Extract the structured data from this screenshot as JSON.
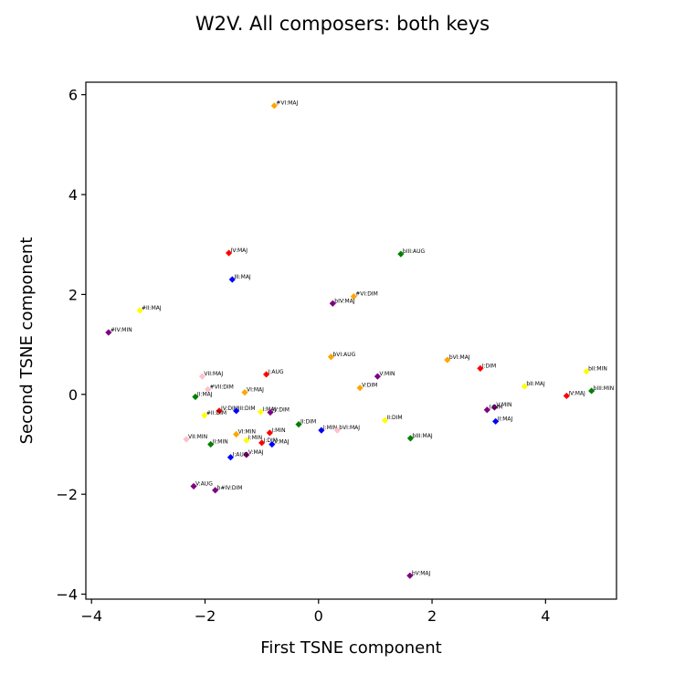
{
  "chart_data": {
    "type": "scatter",
    "title": "W2V. All composers: both keys",
    "xlabel": "First TSNE component",
    "ylabel": "Second TSNE component",
    "xlim": [
      -4.1,
      5.25
    ],
    "ylim": [
      -4.1,
      6.25
    ],
    "xticks": [
      -4,
      -2,
      0,
      2,
      4
    ],
    "yticks": [
      -4,
      -2,
      0,
      2,
      4,
      6
    ],
    "grid": false,
    "points": [
      {
        "x": -0.78,
        "y": 5.78,
        "label": "#VI:MAJ",
        "color": "#ffa500"
      },
      {
        "x": -1.58,
        "y": 2.83,
        "label": "IV:MAJ",
        "color": "#ff0000"
      },
      {
        "x": 1.45,
        "y": 2.81,
        "label": "bIII:AUG",
        "color": "#008000"
      },
      {
        "x": -1.52,
        "y": 2.3,
        "label": "III:MAJ",
        "color": "#0000ff"
      },
      {
        "x": 0.62,
        "y": 1.96,
        "label": "#VI:DIM",
        "color": "#ffa500"
      },
      {
        "x": 0.25,
        "y": 1.82,
        "label": "bIV:MAJ",
        "color": "#800080"
      },
      {
        "x": -3.15,
        "y": 1.68,
        "label": "#II:MAJ",
        "color": "#ffff00"
      },
      {
        "x": -3.7,
        "y": 1.24,
        "label": "#IV:MIN",
        "color": "#800080"
      },
      {
        "x": 0.22,
        "y": 0.75,
        "label": "bVI:AUG",
        "color": "#ffa500"
      },
      {
        "x": 2.27,
        "y": 0.69,
        "label": "bVI:MAJ",
        "color": "#ffa500"
      },
      {
        "x": 2.85,
        "y": 0.52,
        "label": "I:DIM",
        "color": "#ff0000"
      },
      {
        "x": 4.72,
        "y": 0.46,
        "label": "bII:MIN",
        "color": "#ffff00"
      },
      {
        "x": -0.92,
        "y": 0.4,
        "label": "I:AUG",
        "color": "#ff0000"
      },
      {
        "x": 1.04,
        "y": 0.36,
        "label": "V:MIN",
        "color": "#800080"
      },
      {
        "x": -2.05,
        "y": 0.36,
        "label": "VII:MAJ",
        "color": "#ffc0cb"
      },
      {
        "x": 3.63,
        "y": 0.16,
        "label": "bII:MAJ",
        "color": "#ffff00"
      },
      {
        "x": 0.73,
        "y": 0.13,
        "label": "V:DIM",
        "color": "#ffa500"
      },
      {
        "x": -1.95,
        "y": 0.1,
        "label": "#VII:DIM",
        "color": "#ffc0cb"
      },
      {
        "x": 4.81,
        "y": 0.07,
        "label": "bIII:MIN",
        "color": "#008000"
      },
      {
        "x": -1.3,
        "y": 0.04,
        "label": "VI:MAJ",
        "color": "#ffa500"
      },
      {
        "x": 4.37,
        "y": -0.03,
        "label": "IV:MAJ",
        "color": "#ff0000"
      },
      {
        "x": -2.17,
        "y": -0.05,
        "label": "II:MAJ",
        "color": "#008000"
      },
      {
        "x": 3.1,
        "y": -0.26,
        "label": "V:MIN",
        "color": "#800080"
      },
      {
        "x": 2.97,
        "y": -0.31,
        "label": "I:DIM",
        "color": "#800080"
      },
      {
        "x": -1.75,
        "y": -0.33,
        "label": "IV:DIM",
        "color": "#ff0000"
      },
      {
        "x": -1.45,
        "y": -0.33,
        "label": "III:DIM",
        "color": "#0000ff"
      },
      {
        "x": -1.02,
        "y": -0.35,
        "label": "I:MAJ",
        "color": "#ffff00"
      },
      {
        "x": -0.85,
        "y": -0.36,
        "label": "IV:DIM",
        "color": "#800080"
      },
      {
        "x": -2.01,
        "y": -0.42,
        "label": "#II:DIM",
        "color": "#ffff00"
      },
      {
        "x": 1.17,
        "y": -0.52,
        "label": "II:DIM",
        "color": "#ffff00"
      },
      {
        "x": 3.12,
        "y": -0.54,
        "label": "II:MAJ",
        "color": "#0000ff"
      },
      {
        "x": -0.35,
        "y": -0.6,
        "label": "II:DIM",
        "color": "#008000"
      },
      {
        "x": 0.05,
        "y": -0.72,
        "label": "I:MIN",
        "color": "#0000ff"
      },
      {
        "x": 0.33,
        "y": -0.72,
        "label": "bVI:MAJ",
        "color": "#ffc0cb"
      },
      {
        "x": -0.86,
        "y": -0.77,
        "label": "I:MIN",
        "color": "#ff0000"
      },
      {
        "x": -1.45,
        "y": -0.8,
        "label": "VI:MIN",
        "color": "#ffa500"
      },
      {
        "x": 1.62,
        "y": -0.88,
        "label": "bIII:MAJ",
        "color": "#008000"
      },
      {
        "x": -2.33,
        "y": -0.9,
        "label": "VII:MIN",
        "color": "#ffc0cb"
      },
      {
        "x": -1.27,
        "y": -0.92,
        "label": "I:MIN",
        "color": "#ffff00"
      },
      {
        "x": -1.0,
        "y": -0.97,
        "label": "I:DIM",
        "color": "#ff0000"
      },
      {
        "x": -0.82,
        "y": -1.0,
        "label": "V:MAJ",
        "color": "#0000ff"
      },
      {
        "x": -1.9,
        "y": -1.0,
        "label": "II:MIN",
        "color": "#008000"
      },
      {
        "x": -1.27,
        "y": -1.21,
        "label": "V:MAJ",
        "color": "#800080"
      },
      {
        "x": -1.55,
        "y": -1.26,
        "label": "I:AUG",
        "color": "#0000ff"
      },
      {
        "x": -2.2,
        "y": -1.84,
        "label": "V:AUG",
        "color": "#800080"
      },
      {
        "x": -1.82,
        "y": -1.92,
        "label": "b#IV:DIM",
        "color": "#800080"
      },
      {
        "x": 1.61,
        "y": -3.63,
        "label": "bV:MAJ",
        "color": "#800080"
      }
    ]
  }
}
